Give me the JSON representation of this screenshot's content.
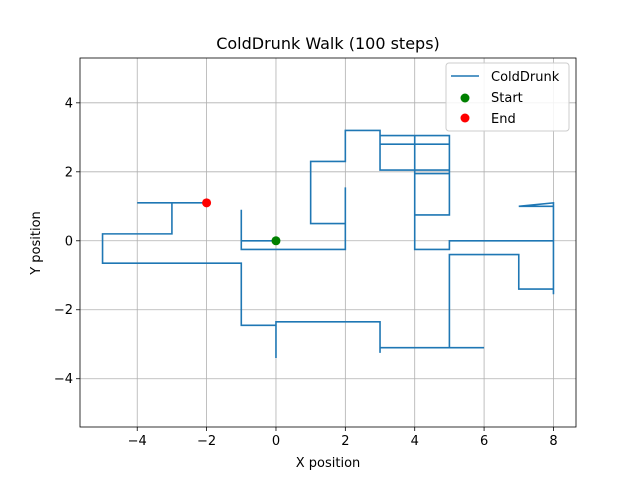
{
  "chart_data": {
    "type": "line",
    "title": "ColdDrunk Walk (100 steps)",
    "xlabel": "X position",
    "ylabel": "Y position",
    "xlim": [
      -5.65,
      8.65
    ],
    "ylim": [
      -5.4,
      5.3
    ],
    "xticks": [
      -4,
      -2,
      0,
      2,
      4,
      6,
      8
    ],
    "yticks": [
      -4,
      -2,
      0,
      2,
      4
    ],
    "xtick_labels": [
      "−4",
      "−2",
      "0",
      "2",
      "4",
      "6",
      "8"
    ],
    "ytick_labels": [
      "−4",
      "−2",
      "0",
      "2",
      "4"
    ],
    "grid": true,
    "legend": {
      "location": "upper right",
      "entries": [
        "ColdDrunk",
        "Start",
        "End"
      ]
    },
    "colors": {
      "path": "#1f77b4",
      "start": "#008000",
      "end": "#ff0000",
      "grid": "#b0b0b0"
    },
    "series": [
      {
        "name": "ColdDrunk",
        "points": [
          [
            0,
            0
          ],
          [
            -1,
            0
          ],
          [
            -1,
            0.9
          ],
          [
            -1,
            -0.25
          ],
          [
            2,
            -0.25
          ],
          [
            2,
            1.55
          ],
          [
            2,
            0.5
          ],
          [
            1,
            0.5
          ],
          [
            1,
            2.3
          ],
          [
            2,
            2.3
          ],
          [
            2,
            3.2
          ],
          [
            3,
            3.2
          ],
          [
            3,
            2.15
          ],
          [
            3,
            2.8
          ],
          [
            5,
            2.8
          ],
          [
            5,
            2.05
          ],
          [
            3,
            2.05
          ],
          [
            3,
            3.05
          ],
          [
            5,
            3.05
          ],
          [
            5,
            1.95
          ],
          [
            4,
            1.95
          ],
          [
            4,
            3.05
          ],
          [
            4,
            0.75
          ],
          [
            5,
            0.75
          ],
          [
            5,
            2.0
          ],
          [
            5,
            0.75
          ],
          [
            4,
            0.75
          ],
          [
            4,
            -0.25
          ],
          [
            5,
            -0.25
          ],
          [
            5,
            0
          ],
          [
            8,
            0
          ],
          [
            8,
            -1.55
          ],
          [
            8,
            1.1
          ],
          [
            7,
            1.0
          ],
          [
            8,
            1.0
          ],
          [
            8,
            -1.4
          ],
          [
            7,
            -1.4
          ],
          [
            7,
            -0.4
          ],
          [
            5,
            -0.4
          ],
          [
            5,
            -3.1
          ],
          [
            6,
            -3.1
          ],
          [
            3,
            -3.1
          ],
          [
            3,
            -3.25
          ],
          [
            3,
            -2.35
          ],
          [
            0,
            -2.35
          ],
          [
            0,
            -3.4
          ],
          [
            0,
            -2.45
          ],
          [
            -1,
            -2.45
          ],
          [
            -1,
            -0.65
          ],
          [
            -5,
            -0.65
          ],
          [
            -5,
            0.2
          ],
          [
            -3,
            0.2
          ],
          [
            -3,
            1.1
          ],
          [
            -4,
            1.1
          ],
          [
            -2,
            1.1
          ]
        ]
      }
    ],
    "markers": [
      {
        "name": "Start",
        "x": 0,
        "y": 0
      },
      {
        "name": "End",
        "x": -2,
        "y": 1.1
      }
    ]
  }
}
